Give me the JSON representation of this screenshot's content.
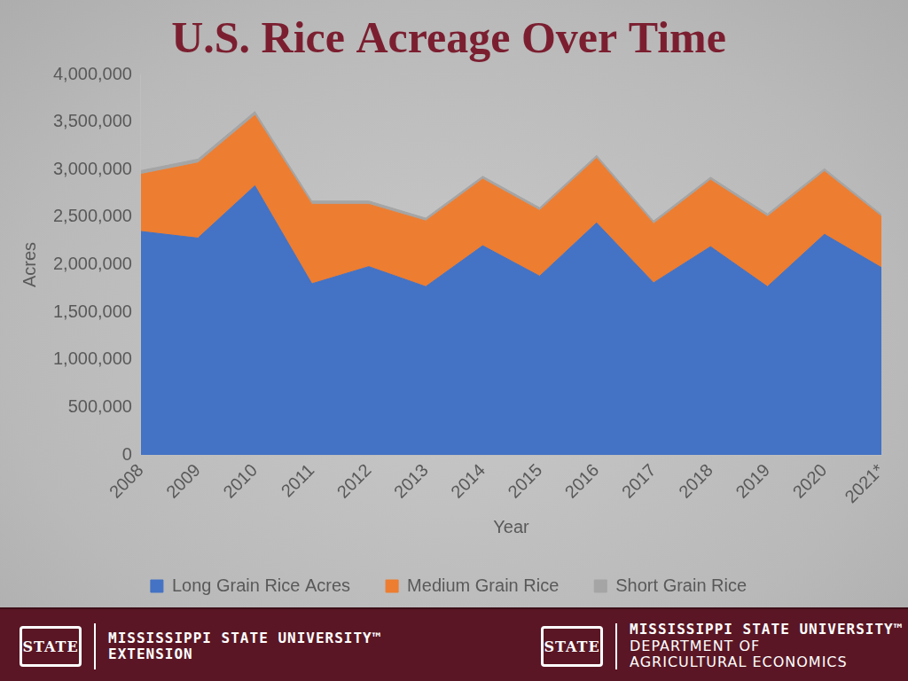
{
  "chart_data": {
    "type": "area",
    "title": "U.S. Rice Acreage Over Time",
    "x_label": "Year",
    "y_label": "Acres",
    "categories": [
      "2008",
      "2009",
      "2010",
      "2011",
      "2012",
      "2013",
      "2014",
      "2015",
      "2016",
      "2017",
      "2018",
      "2019",
      "2020",
      "2021*"
    ],
    "series": [
      {
        "name": "Long Grain Rice Acres",
        "color": "#4472c4",
        "values": [
          2350000,
          2280000,
          2830000,
          1800000,
          1980000,
          1770000,
          2200000,
          1880000,
          2440000,
          1810000,
          2190000,
          1770000,
          2320000,
          1970000
        ]
      },
      {
        "name": "Medium Grain Rice",
        "color": "#ed7d31",
        "values": [
          600000,
          790000,
          740000,
          835000,
          655000,
          690000,
          700000,
          690000,
          680000,
          620000,
          700000,
          735000,
          660000,
          535000
        ]
      },
      {
        "name": "Short Grain Rice",
        "color": "#a5a5a5",
        "values": [
          40000,
          40000,
          40000,
          35000,
          35000,
          30000,
          30000,
          30000,
          30000,
          30000,
          30000,
          30000,
          30000,
          25000
        ]
      }
    ],
    "stacked": true,
    "ylim": [
      0,
      4000000
    ],
    "yticks": [
      0,
      {
        "value": 500000,
        "label": "500,000"
      },
      {
        "value": 1000000,
        "label": "1,000,000"
      },
      {
        "value": 1500000,
        "label": "1,500,000"
      },
      {
        "value": 2000000,
        "label": "2,000,000"
      },
      {
        "value": 2500000,
        "label": "2,500,000"
      },
      {
        "value": 3000000,
        "label": "3,000,000"
      },
      {
        "value": 3500000,
        "label": "3,500,000"
      },
      {
        "value": 4000000,
        "label": "4,000,000"
      }
    ],
    "grid": false,
    "legend": "bottom"
  },
  "footer": {
    "logo_text": "STATE",
    "left": [
      "MISSISSIPPI STATE UNIVERSITY™",
      "EXTENSION"
    ],
    "right": [
      "MISSISSIPPI STATE UNIVERSITY™",
      "DEPARTMENT OF",
      "AGRICULTURAL ECONOMICS"
    ]
  }
}
